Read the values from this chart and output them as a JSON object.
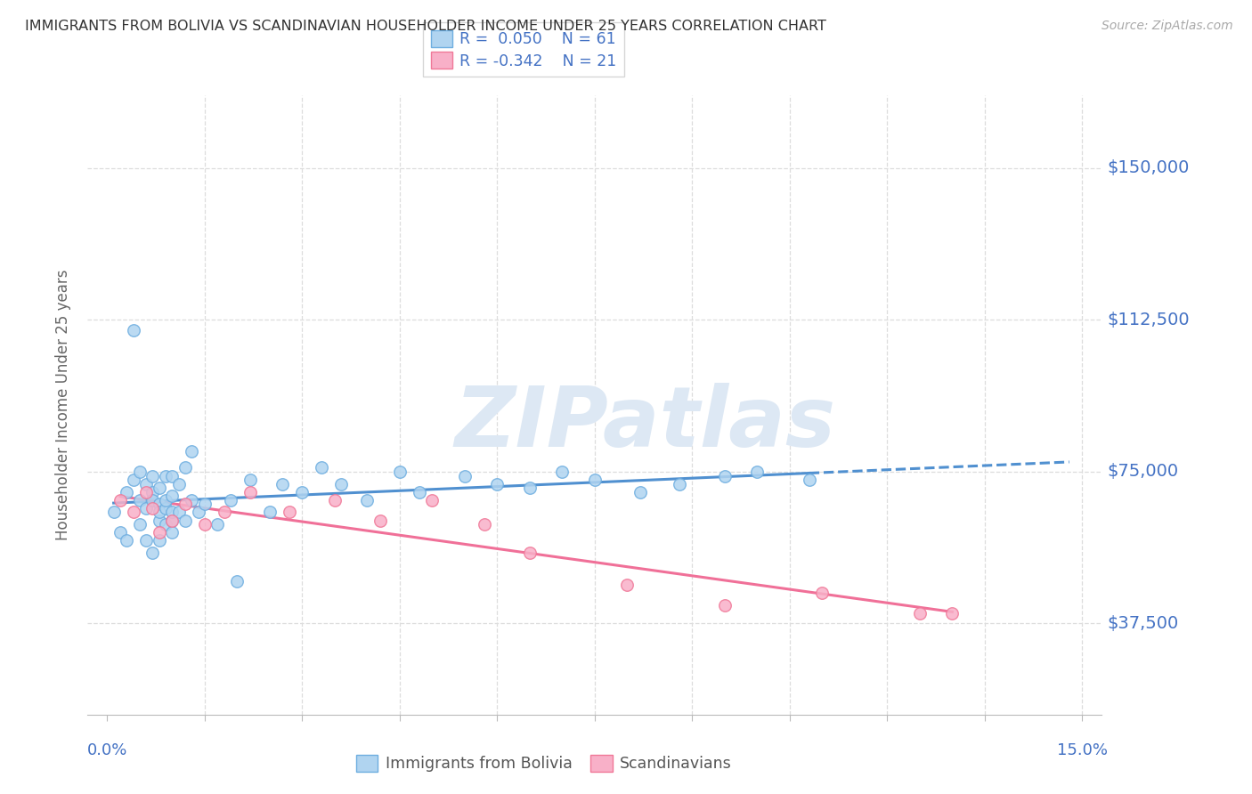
{
  "title": "IMMIGRANTS FROM BOLIVIA VS SCANDINAVIAN HOUSEHOLDER INCOME UNDER 25 YEARS CORRELATION CHART",
  "source": "Source: ZipAtlas.com",
  "ylabel": "Householder Income Under 25 years",
  "xlim": [
    -0.003,
    0.153
  ],
  "ylim": [
    15000,
    168000
  ],
  "yticks": [
    37500,
    75000,
    112500,
    150000
  ],
  "ytick_labels": [
    "$37,500",
    "$75,000",
    "$112,500",
    "$150,000"
  ],
  "xtick_minor": [
    0.015,
    0.03,
    0.045,
    0.06,
    0.075,
    0.09,
    0.105,
    0.12,
    0.135
  ],
  "color_bolivia": "#b0d4f0",
  "color_bolivia_edge": "#6eaee0",
  "color_scandinavian": "#f8b0c8",
  "color_scandinavian_edge": "#f07898",
  "color_bolivia_line": "#5090d0",
  "color_scandinavian_line": "#f07098",
  "color_grid": "#dddddd",
  "color_ytext": "#4472c4",
  "color_title": "#333333",
  "color_source": "#aaaaaa",
  "color_legend_text": "#222222",
  "color_rvalue": "#4472c4",
  "watermark_color": "#dde8f4",
  "bolivia_x": [
    0.001,
    0.002,
    0.003,
    0.003,
    0.004,
    0.004,
    0.005,
    0.005,
    0.005,
    0.006,
    0.006,
    0.006,
    0.007,
    0.007,
    0.007,
    0.007,
    0.008,
    0.008,
    0.008,
    0.008,
    0.008,
    0.009,
    0.009,
    0.009,
    0.009,
    0.01,
    0.01,
    0.01,
    0.01,
    0.01,
    0.011,
    0.011,
    0.012,
    0.012,
    0.013,
    0.013,
    0.014,
    0.015,
    0.017,
    0.019,
    0.02,
    0.022,
    0.025,
    0.027,
    0.03,
    0.033,
    0.036,
    0.04,
    0.045,
    0.048,
    0.055,
    0.06,
    0.065,
    0.07,
    0.075,
    0.082,
    0.088,
    0.095,
    0.1,
    0.108
  ],
  "bolivia_y": [
    65000,
    60000,
    58000,
    70000,
    110000,
    73000,
    68000,
    75000,
    62000,
    72000,
    66000,
    58000,
    70000,
    74000,
    68000,
    55000,
    67000,
    63000,
    71000,
    65000,
    58000,
    66000,
    68000,
    74000,
    62000,
    63000,
    69000,
    74000,
    60000,
    65000,
    72000,
    65000,
    76000,
    63000,
    68000,
    80000,
    65000,
    67000,
    62000,
    68000,
    48000,
    73000,
    65000,
    72000,
    70000,
    76000,
    72000,
    68000,
    75000,
    70000,
    74000,
    72000,
    71000,
    75000,
    73000,
    70000,
    72000,
    74000,
    75000,
    73000
  ],
  "scandinavian_x": [
    0.002,
    0.004,
    0.006,
    0.007,
    0.008,
    0.01,
    0.012,
    0.015,
    0.018,
    0.022,
    0.028,
    0.035,
    0.042,
    0.05,
    0.058,
    0.065,
    0.08,
    0.095,
    0.11,
    0.125,
    0.13
  ],
  "scandinavian_y": [
    68000,
    65000,
    70000,
    66000,
    60000,
    63000,
    67000,
    62000,
    65000,
    70000,
    65000,
    68000,
    63000,
    68000,
    62000,
    55000,
    47000,
    42000,
    45000,
    40000,
    40000
  ]
}
